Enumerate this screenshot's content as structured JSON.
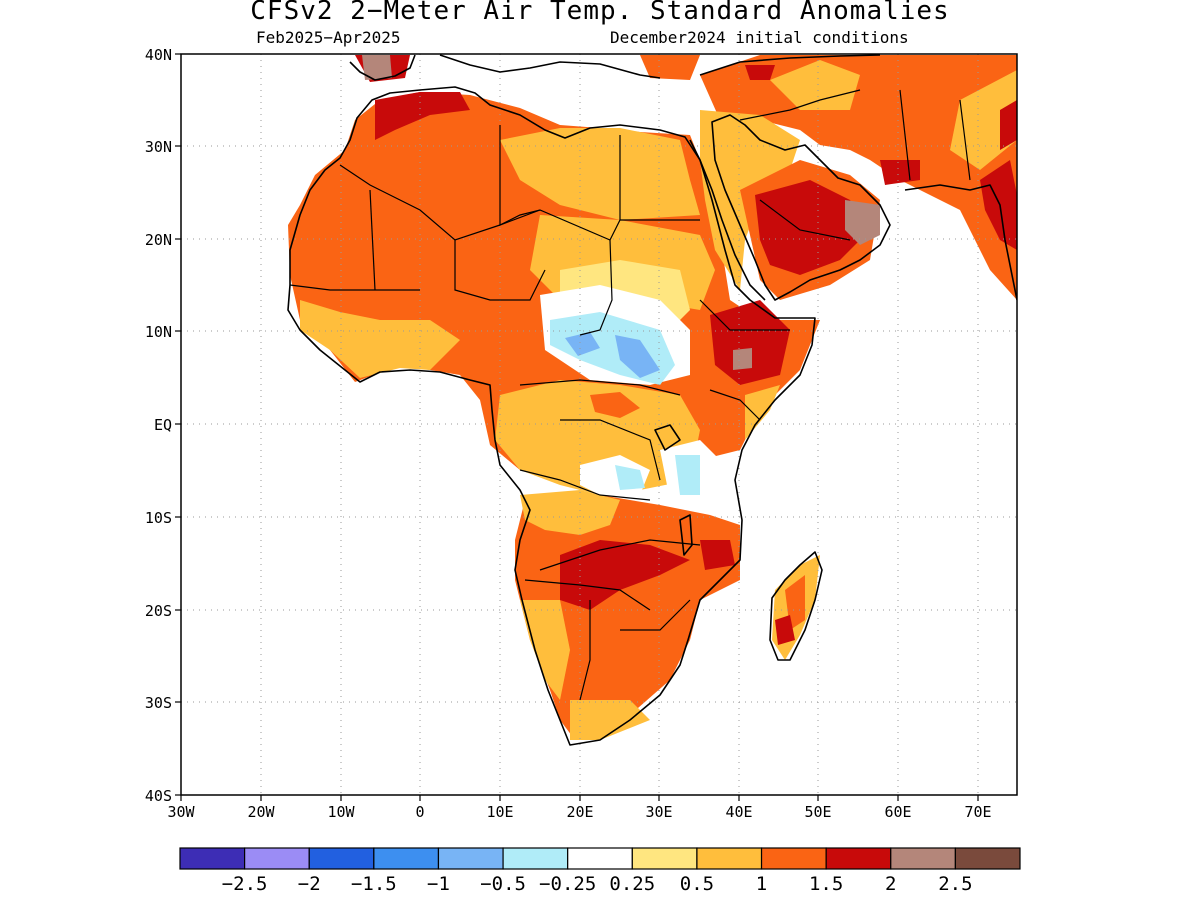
{
  "title": "CFSv2 2−Meter Air Temp. Standard Anomalies",
  "subtitle_left": "Feb2025−Apr2025",
  "subtitle_right": "December2024 initial conditions",
  "lat_labels": [
    "40N",
    "30N",
    "20N",
    "10N",
    "EQ",
    "10S",
    "20S",
    "30S",
    "40S"
  ],
  "lon_labels": [
    "30W",
    "20W",
    "10W",
    "0",
    "10E",
    "20E",
    "30E",
    "40E",
    "50E",
    "60E",
    "70E"
  ],
  "colorbar": {
    "colors": [
      "#3d2db5",
      "#9b8cf5",
      "#2260e0",
      "#3d8ff0",
      "#78b4f5",
      "#b0ecf8",
      "#ffffff",
      "#ffe680",
      "#ffbe3c",
      "#fa6414",
      "#c80a0a",
      "#b4867a",
      "#7a4a3c"
    ],
    "labels": [
      "−2.5",
      "−2",
      "−1.5",
      "−1",
      "−0.5",
      "−0.25",
      "0.25",
      "0.5",
      "1",
      "1.5",
      "2",
      "2.5"
    ]
  },
  "legend_classes": {
    "yellow": "#ffe680",
    "light_orange": "#ffbe3c",
    "orange": "#fa6414",
    "red": "#c80a0a",
    "mauve": "#b4867a",
    "light_blue": "#b0ecf8",
    "blue": "#78b4f5"
  }
}
